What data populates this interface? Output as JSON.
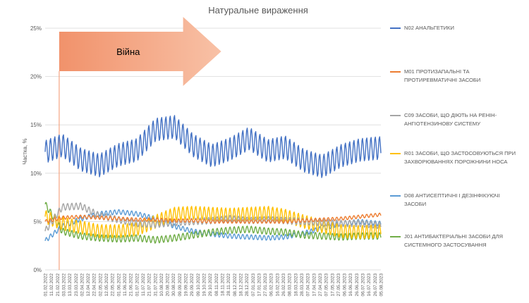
{
  "chart_data": {
    "type": "line",
    "title": "Натуральне вираження",
    "ylabel": "Частка, %",
    "xlabel": "",
    "ylim": [
      0,
      25
    ],
    "y_ticks": [
      "0%",
      "5%",
      "10%",
      "15%",
      "20%",
      "25%"
    ],
    "grid": true,
    "legend_position": "right",
    "annotation": {
      "label": "Війна",
      "date": "24.02.2022",
      "arrow_end_date": "15.09.2022",
      "color": "#f4a582"
    },
    "x_tick_labels": [
      "01.02.2022",
      "11.02.2022",
      "21.02.2022",
      "03.03.2022",
      "13.03.2022",
      "23.03.2022",
      "02.04.2022",
      "12.04.2022",
      "22.04.2022",
      "02.05.2022",
      "12.05.2022",
      "22.05.2022",
      "01.06.2022",
      "11.06.2022",
      "21.06.2022",
      "01.07.2022",
      "11.07.2022",
      "21.07.2022",
      "31.07.2022",
      "10.08.2022",
      "20.08.2022",
      "30.08.2022",
      "09.09.2022",
      "19.09.2022",
      "29.09.2022",
      "09.10.2022",
      "19.10.2022",
      "29.10.2022",
      "08.11.2022",
      "18.11.2022",
      "28.11.2022",
      "08.12.2022",
      "18.12.2022",
      "28.12.2022",
      "07.01.2023",
      "17.01.2023",
      "27.01.2023",
      "06.02.2023",
      "16.02.2023",
      "26.02.2023",
      "08.03.2023",
      "18.03.2023",
      "28.03.2023",
      "07.04.2023",
      "17.04.2023",
      "27.04.2023",
      "07.05.2023",
      "17.05.2023",
      "27.05.2023",
      "06.06.2023",
      "16.06.2023",
      "26.06.2023",
      "06.07.2023",
      "16.07.2023",
      "26.07.2023",
      "05.08.2023"
    ],
    "x": [
      "01.02.2022",
      "01.03.2022",
      "01.04.2022",
      "01.05.2022",
      "01.06.2022",
      "01.07.2022",
      "01.08.2022",
      "01.09.2022",
      "01.10.2022",
      "01.11.2022",
      "01.12.2022",
      "01.01.2023",
      "01.02.2023",
      "01.03.2023",
      "01.04.2023",
      "01.05.2023",
      "01.06.2023",
      "01.07.2023",
      "01.08.2023"
    ],
    "series": [
      {
        "name": "N02 АНАЛЬГЕТИКИ",
        "color": "#4472c4",
        "values": [
          12.2,
          12.9,
          11.4,
          10.8,
          11.9,
          12.4,
          14.5,
          14.8,
          12.9,
          11.8,
          12.5,
          13.6,
          12.3,
          12.7,
          11.3,
          10.7,
          11.8,
          12.4,
          12.6
        ]
      },
      {
        "name": "M01 ПРОТИЗАПАЛЬНІ ТА ПРОТИРЕВМАТИЧНІ ЗАСОБИ",
        "color": "#ed7d31",
        "values": [
          5.0,
          5.4,
          5.5,
          5.4,
          5.3,
          5.2,
          5.2,
          5.1,
          5.1,
          5.0,
          5.0,
          5.0,
          5.0,
          5.0,
          5.1,
          5.2,
          5.3,
          5.5,
          5.7
        ]
      },
      {
        "name": "C09 ЗАСОБИ, ЩО ДІЮТЬ НА РЕНІН-АНГІОТЕНЗИНОВУ СИСТЕМУ",
        "color": "#a5a5a5",
        "values": [
          4.0,
          6.5,
          6.6,
          5.6,
          5.2,
          4.8,
          4.7,
          4.9,
          5.0,
          5.1,
          5.3,
          5.1,
          5.2,
          5.1,
          5.0,
          4.9,
          4.8,
          4.8,
          4.6
        ]
      },
      {
        "name": "R01 ЗАСОБИ, ЩО ЗАСТОСОВУЮТЬСЯ ПРИ ЗАХВОРЮВАННЯХ ПОРОЖНИНИ НОСА",
        "color": "#ffc000",
        "values": [
          5.5,
          4.8,
          4.4,
          4.0,
          4.0,
          4.2,
          5.0,
          5.8,
          5.9,
          5.8,
          5.7,
          5.8,
          5.9,
          5.6,
          5.0,
          4.5,
          4.0,
          3.9,
          4.0
        ]
      },
      {
        "name": "D08 АНТИСЕПТИЧНІ І ДЕЗІНФІКУЮЧІ ЗАСОБИ",
        "color": "#5b9bd5",
        "values": [
          3.0,
          4.5,
          5.3,
          5.8,
          6.0,
          5.8,
          5.3,
          4.5,
          4.0,
          3.7,
          3.5,
          3.4,
          3.3,
          3.4,
          3.8,
          4.3,
          4.8,
          5.0,
          4.8
        ]
      },
      {
        "name": "J01 АНТИБАКТЕРІАЛЬНІ ЗАСОБИ ДЛЯ СИСТЕМНОГО ЗАСТОСУВАННЯ",
        "color": "#70ad47",
        "values": [
          6.8,
          4.0,
          3.5,
          3.3,
          3.2,
          3.3,
          3.1,
          3.3,
          3.6,
          3.9,
          4.1,
          4.2,
          4.0,
          3.9,
          3.6,
          3.5,
          3.4,
          3.5,
          3.5
        ]
      }
    ]
  }
}
